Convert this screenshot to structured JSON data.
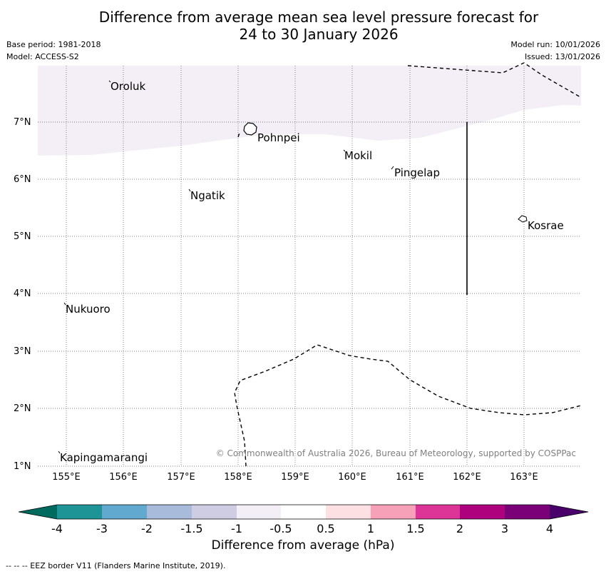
{
  "title": {
    "line1": "Difference from average mean sea level pressure forecast for",
    "line2": "24 to 30 January 2026"
  },
  "meta": {
    "base_period": "Base period: 1981-2018",
    "model": "Model: ACCESS-S2",
    "model_run": "Model run: 10/01/2026",
    "issued": "Issued: 13/01/2026"
  },
  "map": {
    "lat_labels": [
      "7°N",
      "6°N",
      "5°N",
      "4°N",
      "3°N",
      "2°N",
      "1°N"
    ],
    "lon_labels": [
      "155°E",
      "156°E",
      "157°E",
      "158°E",
      "159°E",
      "160°E",
      "161°E",
      "162°E",
      "163°E"
    ],
    "places": [
      "Oroluk",
      "Pohnpei",
      "Mokil",
      "Pingelap",
      "Ngatik",
      "Kosrae",
      "Nukuoro",
      "Kapingamarangi"
    ],
    "copyright": "© Commonwealth of Australia 2026, Bureau of Meteorology, supported by COSPPac",
    "shaded_category": "-1 to -0.5"
  },
  "colorbar": {
    "title": "Difference from average (hPa)",
    "tick_labels": [
      "-4",
      "-3",
      "-2",
      "-1.5",
      "-1",
      "-0.5",
      "0.5",
      "1",
      "1.5",
      "2",
      "3",
      "4"
    ],
    "colors": [
      "#006a5f",
      "#1f9497",
      "#62a9d0",
      "#a9bbdb",
      "#cfcde3",
      "#f4eff6",
      "#ffffff",
      "#fde0e1",
      "#f7a1b9",
      "#dd3497",
      "#ad017e",
      "#7a0177",
      "#49006a"
    ]
  },
  "footnote": "--  --  -- EEZ border V11 (Flanders Marine Institute, 2019)."
}
